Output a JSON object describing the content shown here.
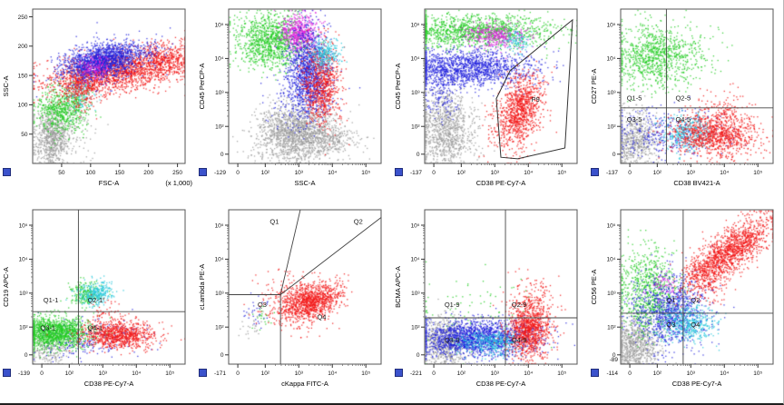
{
  "window": {
    "bg": "#ffffff",
    "border": "#1f1f1f"
  },
  "palette": {
    "red": "#f21818",
    "blue": "#2222dd",
    "green": "#25cc25",
    "gray": "#9b9b9b",
    "magenta": "#dd22dd",
    "cyan": "#28c8dc"
  },
  "axis_style": {
    "frame": "#555555",
    "tick": "#333333",
    "text": "#111111"
  },
  "chart_data": {
    "type": "scatter",
    "description": "Flow cytometry dot plots, 2 rows x 4 columns, multicolor gated populations",
    "log_ticks": [
      {
        "p": 0.06,
        "t": "0"
      },
      {
        "p": 0.24,
        "t": "10²"
      },
      {
        "p": 0.46,
        "t": "10³"
      },
      {
        "p": 0.68,
        "t": "10⁴"
      },
      {
        "p": 0.9,
        "t": "10⁵"
      }
    ],
    "lin_ticks": [
      {
        "p": 0.19,
        "t": "50"
      },
      {
        "p": 0.38,
        "t": "100"
      },
      {
        "p": 0.57,
        "t": "150"
      },
      {
        "p": 0.76,
        "t": "200"
      },
      {
        "p": 0.95,
        "t": "250"
      }
    ],
    "plots": [
      {
        "xlabel": "FSC-A",
        "xunit": "(x 1,000)",
        "ylabel": "SSC-A",
        "xticks": "lin",
        "yticks": "lin",
        "lines": [],
        "labels": [],
        "clusters": [
          {
            "c": "gray",
            "x": 0.12,
            "y": 0.16,
            "rx": 0.055,
            "ry": 0.09,
            "rot": 0,
            "n": 700
          },
          {
            "c": "gray",
            "x": 0.22,
            "y": 0.28,
            "rx": 0.1,
            "ry": 0.12,
            "rot": 0,
            "n": 200
          },
          {
            "c": "green",
            "x": 0.2,
            "y": 0.36,
            "rx": 0.09,
            "ry": 0.07,
            "rot": 35,
            "n": 650
          },
          {
            "c": "cyan",
            "x": 0.3,
            "y": 0.45,
            "rx": 0.05,
            "ry": 0.05,
            "rot": 0,
            "n": 120
          },
          {
            "c": "red",
            "x": 0.33,
            "y": 0.5,
            "rx": 0.07,
            "ry": 0.06,
            "rot": 40,
            "n": 300
          },
          {
            "c": "red",
            "x": 0.56,
            "y": 0.6,
            "rx": 0.24,
            "ry": 0.065,
            "rot": 8,
            "n": 1800
          },
          {
            "c": "red",
            "x": 0.88,
            "y": 0.68,
            "rx": 0.1,
            "ry": 0.05,
            "rot": 5,
            "n": 300
          },
          {
            "c": "blue",
            "x": 0.44,
            "y": 0.66,
            "rx": 0.13,
            "ry": 0.055,
            "rot": 12,
            "n": 1400
          },
          {
            "c": "blue",
            "x": 0.58,
            "y": 0.72,
            "rx": 0.15,
            "ry": 0.05,
            "rot": 5,
            "n": 250
          },
          {
            "c": "magenta",
            "x": 0.4,
            "y": 0.62,
            "rx": 0.05,
            "ry": 0.04,
            "rot": 20,
            "n": 150
          }
        ]
      },
      {
        "xlabel": "SSC-A",
        "ylabel": "CD45 PerCP-A",
        "corner": "-129",
        "xticks": "log",
        "yticks": "log",
        "lines": [],
        "labels": [],
        "clusters": [
          {
            "c": "gray",
            "x": 0.44,
            "y": 0.2,
            "rx": 0.13,
            "ry": 0.095,
            "rot": 0,
            "n": 1600
          },
          {
            "c": "gray",
            "x": 0.65,
            "y": 0.16,
            "rx": 0.1,
            "ry": 0.05,
            "rot": 0,
            "n": 250
          },
          {
            "c": "green",
            "x": 0.27,
            "y": 0.8,
            "rx": 0.11,
            "ry": 0.085,
            "rot": 0,
            "n": 1100
          },
          {
            "c": "magenta",
            "x": 0.46,
            "y": 0.85,
            "rx": 0.065,
            "ry": 0.065,
            "rot": 0,
            "n": 550
          },
          {
            "c": "blue",
            "x": 0.52,
            "y": 0.6,
            "rx": 0.07,
            "ry": 0.14,
            "rot": 0,
            "n": 1200
          },
          {
            "c": "blue",
            "x": 0.45,
            "y": 0.4,
            "rx": 0.1,
            "ry": 0.08,
            "rot": 0,
            "n": 150
          },
          {
            "c": "red",
            "x": 0.61,
            "y": 0.52,
            "rx": 0.06,
            "ry": 0.13,
            "rot": 0,
            "n": 800
          },
          {
            "c": "cyan",
            "x": 0.63,
            "y": 0.72,
            "rx": 0.05,
            "ry": 0.05,
            "rot": 0,
            "n": 250
          }
        ]
      },
      {
        "xlabel": "CD38 PE-Cy7-A",
        "ylabel": "CD45 PerCP-A",
        "corner": "-137",
        "xticks": "log",
        "yticks": "log",
        "lines": [],
        "polygon": [
          [
            0.5,
            0.04
          ],
          [
            0.47,
            0.42
          ],
          [
            0.56,
            0.6
          ],
          [
            0.97,
            0.93
          ],
          [
            0.92,
            0.1
          ],
          [
            0.61,
            0.03
          ]
        ],
        "labels": [
          {
            "t": "P9",
            "x": 0.7,
            "y": 0.4
          }
        ],
        "clusters": [
          {
            "c": "gray",
            "x": 0.14,
            "y": 0.22,
            "rx": 0.09,
            "ry": 0.13,
            "rot": 0,
            "n": 1000
          },
          {
            "c": "blue",
            "x": 0.28,
            "y": 0.62,
            "rx": 0.22,
            "ry": 0.06,
            "rot": 0,
            "n": 1500
          },
          {
            "c": "blue",
            "x": 0.1,
            "y": 0.45,
            "rx": 0.06,
            "ry": 0.1,
            "rot": 0,
            "n": 150
          },
          {
            "c": "green",
            "x": 0.33,
            "y": 0.86,
            "rx": 0.25,
            "ry": 0.05,
            "rot": 0,
            "n": 1300
          },
          {
            "c": "magenta",
            "x": 0.47,
            "y": 0.83,
            "rx": 0.1,
            "ry": 0.04,
            "rot": 0,
            "n": 350
          },
          {
            "c": "cyan",
            "x": 0.6,
            "y": 0.8,
            "rx": 0.045,
            "ry": 0.035,
            "rot": 0,
            "n": 100
          },
          {
            "c": "red",
            "x": 0.63,
            "y": 0.36,
            "rx": 0.065,
            "ry": 0.11,
            "rot": -15,
            "n": 900
          },
          {
            "c": "red",
            "x": 0.55,
            "y": 0.2,
            "rx": 0.08,
            "ry": 0.08,
            "rot": 0,
            "n": 150
          }
        ]
      },
      {
        "xlabel": "CD38 BV421-A",
        "ylabel": "CD27 PE-A",
        "corner": "-137",
        "xticks": "log",
        "yticks": "log",
        "lines": [
          {
            "x1": 0.3,
            "y1": 0,
            "x2": 0.3,
            "y2": 1
          },
          {
            "x1": 0,
            "y1": 0.36,
            "x2": 1,
            "y2": 0.36
          }
        ],
        "labels": [
          {
            "t": "Q1-5",
            "x": 0.04,
            "y": 0.41
          },
          {
            "t": "Q2-5",
            "x": 0.36,
            "y": 0.41
          },
          {
            "t": "Q3-5",
            "x": 0.04,
            "y": 0.27
          },
          {
            "t": "Q4-5",
            "x": 0.36,
            "y": 0.27
          }
        ],
        "clusters": [
          {
            "c": "gray",
            "x": 0.1,
            "y": 0.16,
            "rx": 0.07,
            "ry": 0.1,
            "rot": 0,
            "n": 600
          },
          {
            "c": "green",
            "x": 0.22,
            "y": 0.7,
            "rx": 0.13,
            "ry": 0.1,
            "rot": 0,
            "n": 900
          },
          {
            "c": "green",
            "x": 0.5,
            "y": 0.72,
            "rx": 0.1,
            "ry": 0.08,
            "rot": 0,
            "n": 80
          },
          {
            "c": "blue",
            "x": 0.3,
            "y": 0.2,
            "rx": 0.18,
            "ry": 0.08,
            "rot": 0,
            "n": 350
          },
          {
            "c": "cyan",
            "x": 0.43,
            "y": 0.2,
            "rx": 0.08,
            "ry": 0.06,
            "rot": 0,
            "n": 350
          },
          {
            "c": "red",
            "x": 0.62,
            "y": 0.18,
            "rx": 0.14,
            "ry": 0.07,
            "rot": 0,
            "n": 1000
          },
          {
            "c": "red",
            "x": 0.65,
            "y": 0.33,
            "rx": 0.1,
            "ry": 0.07,
            "rot": 0,
            "n": 150
          }
        ]
      },
      {
        "xlabel": "CD38 PE-Cy7-A",
        "ylabel": "CD19 APC-A",
        "corner": "-139",
        "xticks": "log",
        "yticks": "log",
        "lines": [
          {
            "x1": 0.3,
            "y1": 0,
            "x2": 0.3,
            "y2": 1
          },
          {
            "x1": 0,
            "y1": 0.34,
            "x2": 1,
            "y2": 0.34
          }
        ],
        "labels": [
          {
            "t": "Q1-1",
            "x": 0.07,
            "y": 0.4
          },
          {
            "t": "Q2-1",
            "x": 0.36,
            "y": 0.4
          },
          {
            "t": "Q3-1",
            "x": 0.05,
            "y": 0.22
          },
          {
            "t": "Q4-1",
            "x": 0.36,
            "y": 0.22
          }
        ],
        "clusters": [
          {
            "c": "gray",
            "x": 0.1,
            "y": 0.1,
            "rx": 0.07,
            "ry": 0.06,
            "rot": 0,
            "n": 250
          },
          {
            "c": "blue",
            "x": 0.33,
            "y": 0.17,
            "rx": 0.18,
            "ry": 0.06,
            "rot": 0,
            "n": 250
          },
          {
            "c": "green",
            "x": 0.14,
            "y": 0.21,
            "rx": 0.12,
            "ry": 0.05,
            "rot": 0,
            "n": 1400
          },
          {
            "c": "green",
            "x": 0.34,
            "y": 0.46,
            "rx": 0.05,
            "ry": 0.04,
            "rot": 0,
            "n": 200
          },
          {
            "c": "cyan",
            "x": 0.41,
            "y": 0.46,
            "rx": 0.055,
            "ry": 0.04,
            "rot": 0,
            "n": 300
          },
          {
            "c": "red",
            "x": 0.56,
            "y": 0.19,
            "rx": 0.12,
            "ry": 0.045,
            "rot": 0,
            "n": 900
          },
          {
            "c": "red",
            "x": 0.48,
            "y": 0.3,
            "rx": 0.06,
            "ry": 0.06,
            "rot": 0,
            "n": 80
          }
        ]
      },
      {
        "xlabel": "cKappa FITC-A",
        "ylabel": "cLambda PE-A",
        "corner": "-171",
        "xticks": "log",
        "yticks": "log",
        "lines": [
          {
            "x1": 0,
            "y1": 0.45,
            "x2": 0.34,
            "y2": 0.45
          },
          {
            "x1": 0.34,
            "y1": 0,
            "x2": 0.34,
            "y2": 0.45
          },
          {
            "x1": 0.34,
            "y1": 0.45,
            "x2": 0.47,
            "y2": 1
          },
          {
            "x1": 0.34,
            "y1": 0.45,
            "x2": 1,
            "y2": 0.95
          }
        ],
        "labels": [
          {
            "t": "Q1",
            "x": 0.27,
            "y": 0.91
          },
          {
            "t": "Q2",
            "x": 0.82,
            "y": 0.91
          },
          {
            "t": "Q3",
            "x": 0.19,
            "y": 0.37
          },
          {
            "t": "Q4",
            "x": 0.58,
            "y": 0.29
          }
        ],
        "clusters": [
          {
            "c": "gray",
            "x": 0.15,
            "y": 0.25,
            "rx": 0.05,
            "ry": 0.05,
            "rot": 0,
            "n": 25
          },
          {
            "c": "blue",
            "x": 0.18,
            "y": 0.33,
            "rx": 0.05,
            "ry": 0.05,
            "rot": 0,
            "n": 30
          },
          {
            "c": "green",
            "x": 0.22,
            "y": 0.3,
            "rx": 0.04,
            "ry": 0.04,
            "rot": 0,
            "n": 20
          },
          {
            "c": "red",
            "x": 0.53,
            "y": 0.41,
            "rx": 0.1,
            "ry": 0.055,
            "rot": 18,
            "n": 1000
          },
          {
            "c": "red",
            "x": 0.44,
            "y": 0.4,
            "rx": 0.12,
            "ry": 0.09,
            "rot": 0,
            "n": 250
          }
        ]
      },
      {
        "xlabel": "CD38 PE-Cy7-A",
        "ylabel": "BCMA APC-A",
        "corner": "-221",
        "xticks": "log",
        "yticks": "log",
        "lines": [
          {
            "x1": 0.53,
            "y1": 0,
            "x2": 0.53,
            "y2": 1
          },
          {
            "x1": 0,
            "y1": 0.3,
            "x2": 1,
            "y2": 0.3
          }
        ],
        "labels": [
          {
            "t": "Q1-9",
            "x": 0.13,
            "y": 0.37
          },
          {
            "t": "Q2-9",
            "x": 0.57,
            "y": 0.37
          },
          {
            "t": "Q3-9",
            "x": 0.13,
            "y": 0.14
          },
          {
            "t": "Q4-9",
            "x": 0.57,
            "y": 0.14
          }
        ],
        "clusters": [
          {
            "c": "gray",
            "x": 0.12,
            "y": 0.14,
            "rx": 0.08,
            "ry": 0.08,
            "rot": 0,
            "n": 700
          },
          {
            "c": "green",
            "x": 0.3,
            "y": 0.32,
            "rx": 0.22,
            "ry": 0.12,
            "rot": 0,
            "n": 100
          },
          {
            "c": "blue",
            "x": 0.34,
            "y": 0.17,
            "rx": 0.19,
            "ry": 0.06,
            "rot": 0,
            "n": 1800
          },
          {
            "c": "cyan",
            "x": 0.43,
            "y": 0.14,
            "rx": 0.1,
            "ry": 0.04,
            "rot": 0,
            "n": 350
          },
          {
            "c": "red",
            "x": 0.68,
            "y": 0.22,
            "rx": 0.07,
            "ry": 0.09,
            "rot": 0,
            "n": 1000
          },
          {
            "c": "red",
            "x": 0.7,
            "y": 0.42,
            "rx": 0.08,
            "ry": 0.08,
            "rot": 0,
            "n": 150
          }
        ]
      },
      {
        "xlabel": "CD38 PE-Cy7-A",
        "ylabel": "CD56 PE-A",
        "corner": "-114",
        "ycorner": "-89",
        "xticks": "log",
        "yticks": "log",
        "lines": [
          {
            "x1": 0.41,
            "y1": 0,
            "x2": 0.41,
            "y2": 1
          },
          {
            "x1": 0,
            "y1": 0.33,
            "x2": 1,
            "y2": 0.33
          }
        ],
        "labels": [
          {
            "t": "Q1",
            "x": 0.3,
            "y": 0.4
          },
          {
            "t": "Q2",
            "x": 0.46,
            "y": 0.4
          },
          {
            "t": "Q3",
            "x": 0.3,
            "y": 0.24
          },
          {
            "t": "Q4",
            "x": 0.46,
            "y": 0.24
          }
        ],
        "clusters": [
          {
            "c": "gray",
            "x": 0.1,
            "y": 0.13,
            "rx": 0.08,
            "ry": 0.09,
            "rot": 0,
            "n": 800
          },
          {
            "c": "green",
            "x": 0.18,
            "y": 0.47,
            "rx": 0.1,
            "ry": 0.13,
            "rot": 0,
            "n": 800
          },
          {
            "c": "blue",
            "x": 0.32,
            "y": 0.34,
            "rx": 0.12,
            "ry": 0.12,
            "rot": 0,
            "n": 1000
          },
          {
            "c": "cyan",
            "x": 0.44,
            "y": 0.27,
            "rx": 0.09,
            "ry": 0.06,
            "rot": 0,
            "n": 450
          },
          {
            "c": "magenta",
            "x": 0.28,
            "y": 0.52,
            "rx": 0.05,
            "ry": 0.05,
            "rot": 0,
            "n": 60
          },
          {
            "c": "red",
            "x": 0.55,
            "y": 0.55,
            "rx": 0.08,
            "ry": 0.07,
            "rot": 30,
            "n": 200
          },
          {
            "c": "red",
            "x": 0.72,
            "y": 0.74,
            "rx": 0.17,
            "ry": 0.06,
            "rot": 38,
            "n": 1400
          }
        ]
      }
    ]
  }
}
